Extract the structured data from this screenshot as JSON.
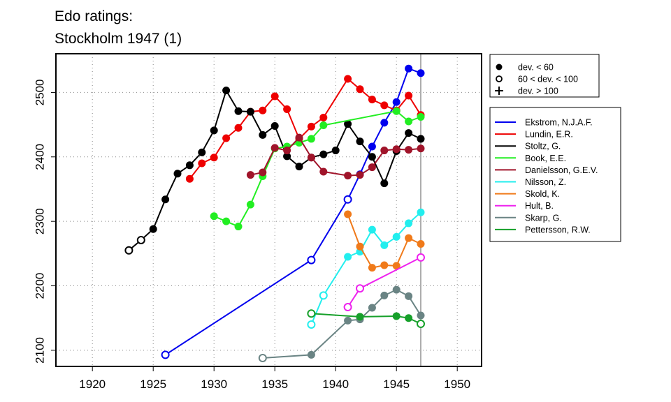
{
  "chart_data": {
    "type": "line",
    "title_lines": [
      "Edo ratings:",
      "Stockholm 1947 (1)"
    ],
    "xlabel": "",
    "ylabel": "",
    "xlim": [
      1917,
      1952
    ],
    "ylim": [
      2075,
      2560
    ],
    "x_ticks": [
      1920,
      1925,
      1930,
      1935,
      1940,
      1945,
      1950
    ],
    "y_ticks": [
      2100,
      2200,
      2300,
      2400,
      2500
    ],
    "grid": true,
    "reference_line_x": 1947,
    "marker_legend": [
      {
        "label": "dev. < 60",
        "symbol": "filled-circle"
      },
      {
        "label": "60 < dev. < 100",
        "symbol": "open-circle"
      },
      {
        "label": "dev. > 100",
        "symbol": "plus"
      }
    ],
    "series": [
      {
        "name": "Ekstrom, N.J.A.F.",
        "color": "#0000ee",
        "x": [
          1926,
          1938,
          1941,
          1942,
          1943,
          1944,
          1945,
          1946,
          1947
        ],
        "y": [
          2093,
          2240,
          2334,
          2373,
          2416,
          2453,
          2485,
          2537,
          2530
        ],
        "markers": [
          "open",
          "open",
          "open",
          "filled",
          "filled",
          "filled",
          "filled",
          "filled",
          "filled"
        ]
      },
      {
        "name": "Lundin, E.R.",
        "color": "#ee0000",
        "x": [
          1928,
          1929,
          1930,
          1931,
          1932,
          1933,
          1934,
          1935,
          1936,
          1937,
          1938,
          1939,
          1941,
          1942,
          1943,
          1944,
          1945,
          1946,
          1947
        ],
        "y": [
          2366,
          2390,
          2399,
          2429,
          2445,
          2470,
          2472,
          2494,
          2474,
          2428,
          2447,
          2461,
          2521,
          2505,
          2489,
          2480,
          2472,
          2495,
          2465
        ],
        "markers": [
          "filled",
          "filled",
          "filled",
          "filled",
          "filled",
          "filled",
          "filled",
          "filled",
          "filled",
          "filled",
          "filled",
          "filled",
          "filled",
          "filled",
          "filled",
          "filled",
          "filled",
          "filled",
          "filled"
        ]
      },
      {
        "name": "Stoltz, G.",
        "color": "#000000",
        "x": [
          1923,
          1924,
          1925,
          1926,
          1927,
          1928,
          1929,
          1930,
          1931,
          1932,
          1933,
          1934,
          1935,
          1936,
          1937,
          1938,
          1939,
          1940,
          1941,
          1942,
          1943,
          1944,
          1945,
          1946,
          1947
        ],
        "y": [
          2255,
          2271,
          2288,
          2334,
          2374,
          2387,
          2407,
          2441,
          2503,
          2471,
          2470,
          2434,
          2448,
          2401,
          2385,
          2399,
          2404,
          2410,
          2451,
          2424,
          2400,
          2359,
          2409,
          2437,
          2428
        ],
        "markers": [
          "open",
          "open",
          "filled",
          "filled",
          "filled",
          "filled",
          "filled",
          "filled",
          "filled",
          "filled",
          "filled",
          "filled",
          "filled",
          "filled",
          "filled",
          "filled",
          "filled",
          "filled",
          "filled",
          "filled",
          "filled",
          "filled",
          "filled",
          "filled",
          "filled"
        ]
      },
      {
        "name": "Book, E.E.",
        "color": "#22ee22",
        "x": [
          1930,
          1931,
          1932,
          1933,
          1934,
          1935,
          1936,
          1937,
          1938,
          1939,
          1945,
          1946,
          1947
        ],
        "y": [
          2308,
          2300,
          2292,
          2326,
          2370,
          2413,
          2416,
          2422,
          2428,
          2449,
          2471,
          2455,
          2462
        ],
        "markers": [
          "filled",
          "filled",
          "filled",
          "filled",
          "filled",
          "filled",
          "filled",
          "filled",
          "filled",
          "filled",
          "filled",
          "filled",
          "filled"
        ]
      },
      {
        "name": "Danielsson, G.E.V.",
        "color": "#a0142a",
        "x": [
          1933,
          1934,
          1935,
          1936,
          1937,
          1938,
          1939,
          1941,
          1942,
          1943,
          1944,
          1945,
          1946,
          1947
        ],
        "y": [
          2372,
          2376,
          2414,
          2410,
          2430,
          2399,
          2377,
          2371,
          2372,
          2384,
          2410,
          2412,
          2411,
          2413
        ],
        "markers": [
          "filled",
          "filled",
          "filled",
          "filled",
          "filled",
          "filled",
          "filled",
          "filled",
          "filled",
          "filled",
          "filled",
          "filled",
          "filled",
          "filled"
        ]
      },
      {
        "name": "Nilsson, Z.",
        "color": "#22eeee",
        "x": [
          1938,
          1939,
          1941,
          1942,
          1943,
          1944,
          1945,
          1946,
          1947
        ],
        "y": [
          2140,
          2185,
          2245,
          2253,
          2287,
          2263,
          2276,
          2297,
          2314
        ],
        "markers": [
          "open",
          "open",
          "filled",
          "filled",
          "filled",
          "filled",
          "filled",
          "filled",
          "filled"
        ]
      },
      {
        "name": "Skold, K.",
        "color": "#f07a1a",
        "x": [
          1941,
          1942,
          1943,
          1944,
          1945,
          1946,
          1947
        ],
        "y": [
          2311,
          2261,
          2228,
          2232,
          2231,
          2274,
          2265
        ],
        "markers": [
          "filled",
          "filled",
          "filled",
          "filled",
          "filled",
          "filled",
          "filled"
        ]
      },
      {
        "name": "Hult, B.",
        "color": "#ee22ee",
        "x": [
          1941,
          1942,
          1947
        ],
        "y": [
          2167,
          2196,
          2244
        ],
        "markers": [
          "open",
          "open",
          "open"
        ]
      },
      {
        "name": "Skarp, G.",
        "color": "#6a8484",
        "x": [
          1934,
          1938,
          1941,
          1942,
          1943,
          1944,
          1945,
          1946,
          1947
        ],
        "y": [
          2088,
          2093,
          2146,
          2148,
          2166,
          2185,
          2194,
          2184,
          2154
        ],
        "markers": [
          "open",
          "filled",
          "filled",
          "filled",
          "filled",
          "filled",
          "filled",
          "filled",
          "filled"
        ]
      },
      {
        "name": "Pettersson, R.W.",
        "color": "#16a02a",
        "x": [
          1938,
          1942,
          1945,
          1946,
          1947
        ],
        "y": [
          2157,
          2152,
          2153,
          2150,
          2141
        ],
        "markers": [
          "open",
          "filled",
          "filled",
          "filled",
          "open"
        ]
      }
    ]
  }
}
